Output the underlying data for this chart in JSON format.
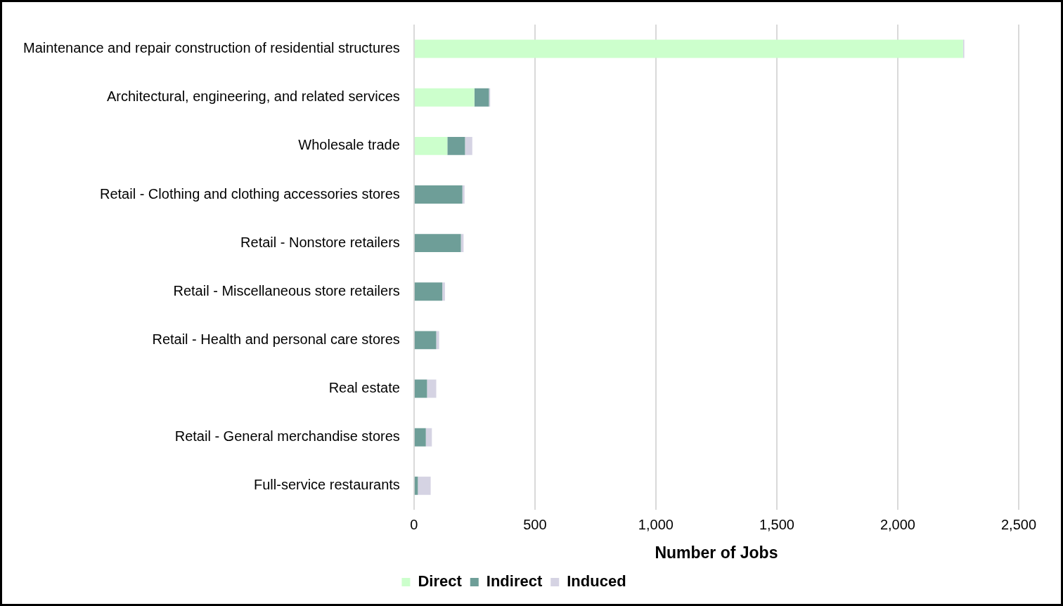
{
  "chart_data": {
    "type": "bar",
    "orientation": "horizontal",
    "stacked": true,
    "xlabel": "Number of Jobs",
    "categories": [
      "Maintenance and repair construction of residential structures",
      "Architectural, engineering, and related services",
      "Wholesale trade",
      "Retail - Clothing and clothing accessories stores",
      "Retail - Nonstore retailers",
      "Retail - Miscellaneous store retailers",
      "Retail - Health and personal care stores",
      "Real estate",
      "Retail - General merchandise stores",
      "Full-service restaurants"
    ],
    "series": [
      {
        "name": "Direct",
        "color": "#ccffcc",
        "values": [
          2270,
          250,
          138,
          0,
          0,
          0,
          0,
          0,
          0,
          0
        ]
      },
      {
        "name": "Indirect",
        "color": "#6e9e98",
        "values": [
          0,
          60,
          73,
          200,
          194,
          117,
          92,
          54,
          49,
          16
        ]
      },
      {
        "name": "Induced",
        "color": "#d5d3e3",
        "values": [
          5,
          5,
          30,
          9,
          11,
          11,
          12,
          38,
          25,
          53
        ]
      }
    ],
    "xlim": [
      0,
      2500
    ],
    "xticks": [
      0,
      500,
      {
        "value": 1000,
        "label": "1,000"
      },
      {
        "value": 1500,
        "label": "1,500"
      },
      {
        "value": 2000,
        "label": "2,000"
      },
      {
        "value": 2500,
        "label": "2,500"
      }
    ],
    "grid": "x",
    "legend": "bottom"
  }
}
